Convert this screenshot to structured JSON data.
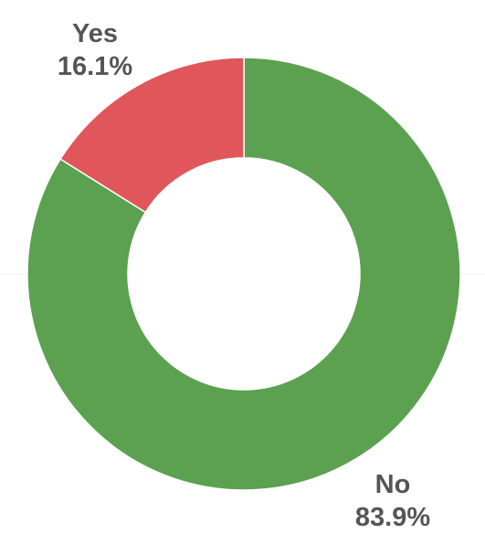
{
  "chart_data": {
    "type": "pie",
    "variant": "donut",
    "title": "",
    "categories": [
      "No",
      "Yes"
    ],
    "values": [
      83.9,
      16.1
    ],
    "value_labels": [
      "83.9%",
      "16.1%"
    ],
    "colors": [
      "#5ba150",
      "#e0565b"
    ],
    "start_angle": "12 o'clock, clockwise",
    "legend": "none",
    "data_labels": "outside, category name above percentage"
  }
}
